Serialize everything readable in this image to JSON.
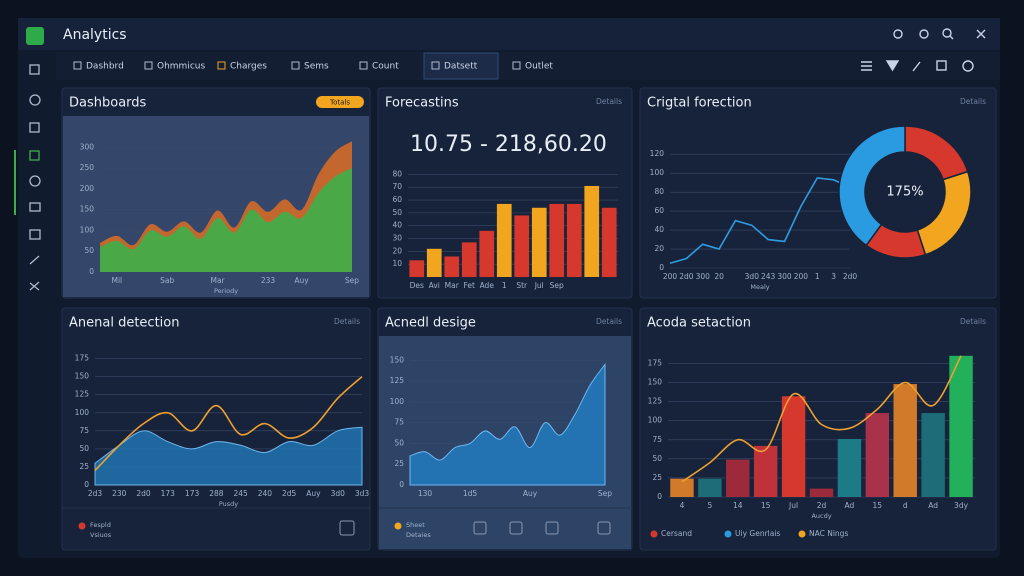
{
  "header": {
    "title": "Analytics"
  },
  "toolbar": [
    "Dashbrd",
    "Ohmmicus",
    "Charges",
    "Sems",
    "Count",
    "Datsett",
    "Outlet"
  ],
  "chart_data": [
    {
      "type": "area",
      "title": "Dashboards",
      "badge": "Totals",
      "stacked": true,
      "categories": [
        null,
        "Mil",
        null,
        null,
        "Sab",
        null,
        null,
        "Mar",
        null,
        null,
        "233",
        null,
        "Auy",
        null,
        null,
        "Sep"
      ],
      "series": [
        {
          "color": "#3fae4a",
          "values": [
            60,
            75,
            55,
            100,
            85,
            110,
            80,
            130,
            95,
            150,
            120,
            145,
            130,
            190,
            230,
            250
          ]
        },
        {
          "color": "#d06a2a",
          "values": [
            10,
            12,
            10,
            15,
            12,
            12,
            15,
            18,
            12,
            20,
            25,
            30,
            20,
            45,
            60,
            65
          ]
        }
      ],
      "ylim": [
        0,
        330
      ],
      "yticks": [
        0,
        50,
        100,
        150,
        200,
        250,
        300
      ],
      "xlabel": "Periody"
    },
    {
      "type": "bar",
      "title": "Forecastins",
      "menu": "Details",
      "subtitle": "10.75 - 218,60.20",
      "categories": [
        "Des",
        "Avi",
        "Mar",
        "Fet",
        "Ade",
        "1",
        "Str",
        "Jul",
        "Sep",
        null,
        null,
        null
      ],
      "values": [
        13,
        22,
        16,
        27,
        36,
        57,
        48,
        54,
        57,
        57,
        71,
        54
      ],
      "colors": [
        "#d6382e",
        "#f2a61f",
        "#d6382e",
        "#d6382e",
        "#d6382e",
        "#f2a61f",
        "#d6382e",
        "#f2a61f",
        "#d6382e",
        "#d6382e",
        "#f2a61f",
        "#d6382e"
      ],
      "ylim": [
        0,
        85
      ],
      "yticks": [
        10,
        20,
        30,
        40,
        50,
        60,
        70,
        80
      ]
    },
    {
      "type": "line",
      "title": "Crigtal forection",
      "menu": "Details",
      "categories": [
        "200",
        "2d0",
        "300",
        "20",
        null,
        "3d0",
        "243",
        "300",
        "200",
        "1",
        "3",
        "2d0"
      ],
      "series": [
        {
          "color": "#2f9be0",
          "values": [
            5,
            10,
            25,
            20,
            50,
            45,
            30,
            28,
            65,
            95,
            93,
            85
          ]
        }
      ],
      "ylim": [
        0,
        135
      ],
      "yticks": [
        0,
        20,
        40,
        60,
        80,
        100,
        120
      ],
      "xlabel": "Mealy",
      "donut": {
        "center_label": "175%",
        "values": [
          20,
          25,
          15,
          40
        ],
        "colors": [
          "#d6382e",
          "#f2a61f",
          "#d6382e",
          "#2a9be0"
        ]
      }
    },
    {
      "type": "area",
      "title": "Anenal detection",
      "menu": "Details",
      "categories": [
        "2d3",
        "230",
        "2d0",
        "173",
        "173",
        "288",
        "245",
        "240",
        "2d5",
        "Auy",
        "3d0",
        "3d3"
      ],
      "series": [
        {
          "color": "#1f6fa8",
          "style": "area",
          "values": [
            30,
            55,
            75,
            60,
            50,
            60,
            55,
            45,
            60,
            55,
            75,
            80
          ]
        },
        {
          "color": "#f0a030",
          "style": "line",
          "values": [
            20,
            55,
            85,
            100,
            75,
            110,
            70,
            85,
            65,
            80,
            120,
            150
          ]
        }
      ],
      "ylim": [
        0,
        180
      ],
      "yticks": [
        0,
        25,
        50,
        75,
        100,
        125,
        150,
        175
      ],
      "xlabel": "Pusdy",
      "footer": [
        "Fespld",
        "Vsiuos"
      ]
    },
    {
      "type": "area",
      "title": "Acnedl desige",
      "menu": "Details",
      "categories": [
        null,
        "130",
        null,
        null,
        "1d5",
        null,
        null,
        null,
        "Auy",
        null,
        null,
        null,
        null,
        "Sep"
      ],
      "series": [
        {
          "color": "#2377b8",
          "style": "area",
          "values": [
            35,
            40,
            30,
            45,
            50,
            65,
            55,
            70,
            45,
            75,
            60,
            85,
            120,
            145
          ]
        }
      ],
      "ylim": [
        0,
        160
      ],
      "yticks": [
        0,
        25,
        50,
        75,
        100,
        125,
        150
      ],
      "footer": [
        "Sheet",
        "Detaies"
      ]
    },
    {
      "type": "bar",
      "title": "Acoda setaction",
      "menu": "Details",
      "categories": [
        "4",
        "5",
        "14",
        "15",
        "Jul",
        "2d",
        "Ad",
        "15",
        "d",
        "Ad",
        "3dy"
      ],
      "values": [
        24,
        24,
        49,
        67,
        132,
        11,
        76,
        110,
        148,
        110,
        185
      ],
      "colors": [
        "#d07a2a",
        "#1c6d78",
        "#9c2a3a",
        "#c0323a",
        "#d6382e",
        "#9c2a3a",
        "#1c7b86",
        "#a8324a",
        "#d07a2a",
        "#1c6d78",
        "#22b05a"
      ],
      "series": [
        {
          "color": "#f0a030",
          "style": "line",
          "values": [
            20,
            45,
            75,
            62,
            135,
            95,
            90,
            115,
            150,
            120,
            185
          ]
        }
      ],
      "ylim": [
        0,
        190
      ],
      "yticks": [
        0,
        25,
        50,
        75,
        100,
        125,
        150,
        175
      ],
      "xlabel": "Aucdy",
      "legend": [
        {
          "label": "Cersand",
          "color": "#d6382e"
        },
        {
          "label": "Uiy Genrlais",
          "color": "#2a9be0"
        },
        {
          "label": "NAC Nings",
          "color": "#f2a61f"
        }
      ]
    }
  ]
}
